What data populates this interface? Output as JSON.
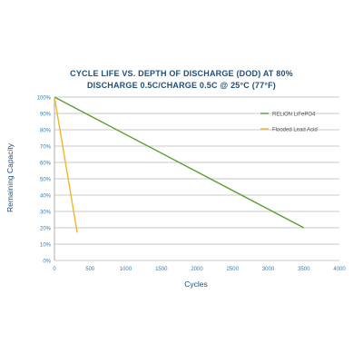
{
  "chart_data": {
    "type": "line",
    "title_lines": [
      "CYCLE LIFE VS. DEPTH OF DISCHARGE (DOD) AT 80%",
      "DISCHARGE 0.5C/CHARGE 0.5C @ 25°C (77°F)"
    ],
    "xlabel": "Cycles",
    "ylabel": "Remaining Capacity",
    "xlim": [
      0,
      4000
    ],
    "ylim": [
      0,
      100
    ],
    "x_ticks": [
      0,
      500,
      1000,
      1500,
      2000,
      2500,
      3000,
      3500,
      4000
    ],
    "x_tick_labels": [
      "0",
      "500",
      "1000",
      "1500",
      "2000",
      "2500",
      "3000",
      "3500",
      "4000"
    ],
    "y_ticks": [
      0,
      10,
      20,
      30,
      40,
      50,
      60,
      70,
      80,
      90,
      100
    ],
    "y_tick_labels": [
      "0%",
      "10%",
      "20%",
      "30%",
      "40%",
      "50%",
      "60%",
      "70%",
      "80%",
      "90%",
      "100%"
    ],
    "grid": "horizontal",
    "legend_position": "top-right",
    "series": [
      {
        "name": "RELiON LiFePO4",
        "color": "#5a9e2f",
        "x": [
          0,
          3500
        ],
        "y": [
          100,
          20
        ]
      },
      {
        "name": "Flooded Lead Acid",
        "color": "#f0b429",
        "x": [
          0,
          320
        ],
        "y": [
          100,
          17
        ]
      }
    ]
  }
}
